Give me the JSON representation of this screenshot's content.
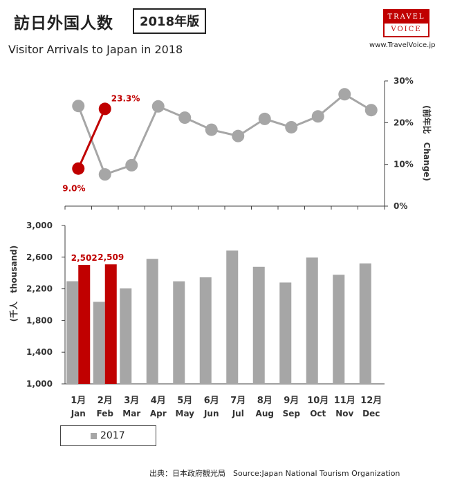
{
  "header": {
    "title_ja": "訪日外国人数",
    "edition": "2018年版",
    "subtitle": "Visitor Arrivals to Japan in 2018",
    "logo_line1": "TRAVEL",
    "logo_line2": "VOICE",
    "website": "www.TravelVoice.jp"
  },
  "footer": {
    "source": "出典：日本政府観光局　Source:Japan  National Tourism  Organization"
  },
  "legend": {
    "label": "2017"
  },
  "colors": {
    "series_2017": "#a6a6a6",
    "series_2018": "#c00000",
    "axis": "#404040"
  },
  "chart_data": [
    {
      "type": "line",
      "x_categories_ja": [
        "1月",
        "2月",
        "3月",
        "4月",
        "5月",
        "6月",
        "7月",
        "8月",
        "9月",
        "10月",
        "11月",
        "12月"
      ],
      "x_categories_en": [
        "Jan",
        "Feb",
        "Mar",
        "Apr",
        "May",
        "Jun",
        "Jul",
        "Aug",
        "Sep",
        "Oct",
        "Nov",
        "Dec"
      ],
      "ylabel": "(前年比　Change)",
      "ylim": [
        0,
        30
      ],
      "y_ticks": [
        "0%",
        "10%",
        "20%",
        "30%"
      ],
      "y_axis_position": "right",
      "series": [
        {
          "name": "2017",
          "values": [
            24.0,
            7.6,
            9.8,
            23.9,
            21.2,
            18.3,
            16.8,
            20.9,
            18.9,
            21.5,
            26.8,
            23.0
          ]
        },
        {
          "name": "2018",
          "values": [
            9.0,
            23.3
          ]
        }
      ],
      "data_labels": [
        "9.0%",
        "23.3%"
      ]
    },
    {
      "type": "bar",
      "categories_ja": [
        "1月",
        "2月",
        "3月",
        "4月",
        "5月",
        "6月",
        "7月",
        "8月",
        "9月",
        "10月",
        "11月",
        "12月"
      ],
      "categories_en": [
        "Jan",
        "Feb",
        "Mar",
        "Apr",
        "May",
        "Jun",
        "Jul",
        "Aug",
        "Sep",
        "Oct",
        "Nov",
        "Dec"
      ],
      "ylabel": "(千人　thousand)",
      "ylim": [
        1000,
        3000
      ],
      "y_ticks": [
        "1,000",
        "1,400",
        "1,800",
        "2,200",
        "2,600",
        "3,000"
      ],
      "series": [
        {
          "name": "2017",
          "values": [
            2296,
            2036,
            2205,
            2579,
            2295,
            2346,
            2683,
            2478,
            2280,
            2595,
            2378,
            2521
          ]
        },
        {
          "name": "2018",
          "values": [
            2502,
            2509
          ]
        }
      ],
      "data_labels": [
        "2,502",
        "2,509"
      ]
    }
  ]
}
